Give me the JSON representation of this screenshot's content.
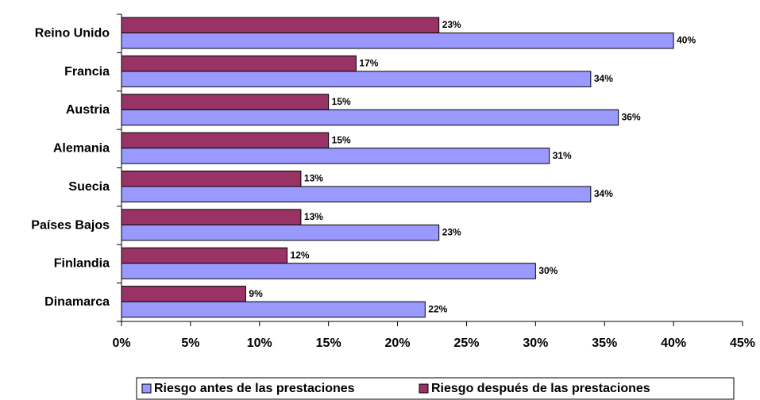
{
  "chart_data": {
    "type": "bar",
    "orientation": "horizontal",
    "categories": [
      "Reino Unido",
      "Francia",
      "Austria",
      "Alemania",
      "Suecia",
      "Países Bajos",
      "Finlandia",
      "Dinamarca"
    ],
    "series": [
      {
        "name": "Riesgo antes de las prestaciones",
        "color": "#9999ff",
        "values": [
          40,
          34,
          36,
          31,
          34,
          23,
          30,
          22
        ],
        "value_labels": [
          "40%",
          "34%",
          "36%",
          "31%",
          "34%",
          "23%",
          "30%",
          "22%"
        ]
      },
      {
        "name": "Riesgo después de las prestaciones",
        "color": "#993366",
        "values": [
          23,
          17,
          15,
          15,
          13,
          13,
          12,
          9
        ],
        "value_labels": [
          "23%",
          "17%",
          "15%",
          "15%",
          "13%",
          "13%",
          "12%",
          "9%"
        ]
      }
    ],
    "xlim": [
      0,
      45
    ],
    "xticks": [
      {
        "value": 0,
        "label": "0%"
      },
      {
        "value": 5,
        "label": "5%"
      },
      {
        "value": 10,
        "label": "10%"
      },
      {
        "value": 15,
        "label": "15%"
      },
      {
        "value": 20,
        "label": "20%"
      },
      {
        "value": 25,
        "label": "25%"
      },
      {
        "value": 30,
        "label": "30%"
      },
      {
        "value": 35,
        "label": "35%"
      },
      {
        "value": 40,
        "label": "40%"
      },
      {
        "value": 45,
        "label": "45%"
      }
    ],
    "legend": "bottom",
    "grid": false
  }
}
